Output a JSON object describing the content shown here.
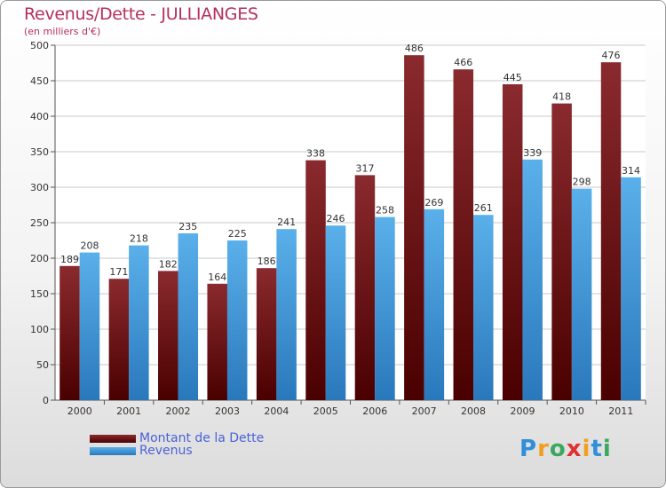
{
  "chart_data": {
    "type": "bar",
    "title": "Revenus/Dette - JULLIANGES",
    "subtitle": "(en milliers d'€)",
    "categories": [
      "2000",
      "2001",
      "2002",
      "2003",
      "2004",
      "2005",
      "2006",
      "2007",
      "2008",
      "2009",
      "2010",
      "2011"
    ],
    "series": [
      {
        "name": "Montant de la Dette",
        "color": "#7a1c1c",
        "values": [
          189,
          171,
          182,
          164,
          186,
          338,
          317,
          486,
          466,
          445,
          418,
          476
        ]
      },
      {
        "name": "Revenus",
        "color": "#4ea8e6",
        "values": [
          208,
          218,
          235,
          225,
          241,
          246,
          258,
          269,
          261,
          339,
          298,
          314
        ]
      }
    ],
    "ylim": [
      0,
      500
    ],
    "yticks": [
      0,
      50,
      100,
      150,
      200,
      250,
      300,
      350,
      400,
      450,
      500
    ],
    "grid": true,
    "legend": "bottom-left"
  },
  "logo": {
    "text": "Proxiti",
    "letters": [
      {
        "ch": "P",
        "color": "#2f8fd8"
      },
      {
        "ch": "r",
        "color": "#f0a020"
      },
      {
        "ch": "o",
        "color": "#3aa860"
      },
      {
        "ch": "x",
        "color": "#e03030"
      },
      {
        "ch": "i",
        "color": "#f0a020"
      },
      {
        "ch": "t",
        "color": "#2f8fd8"
      },
      {
        "ch": "i",
        "color": "#3aa860"
      }
    ]
  }
}
